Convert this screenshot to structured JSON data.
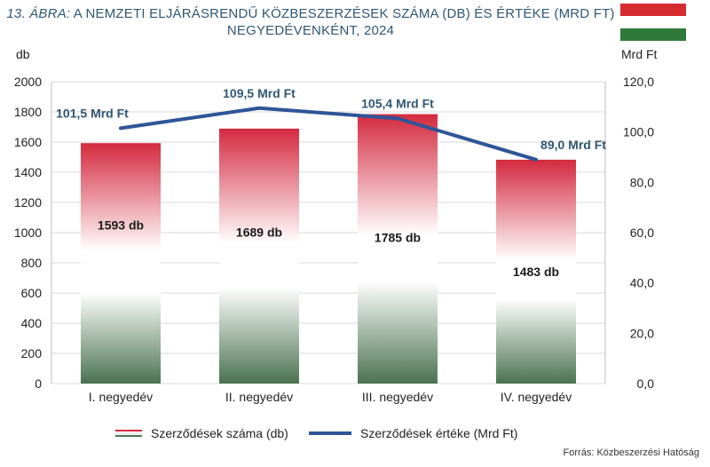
{
  "title": {
    "prefix": "13. ÁBRA:",
    "line1": "A NEMZETI ELJÁRÁSRENDŰ KÖZBESZERZÉSEK SZÁMA (DB) ÉS ÉRTÉKE (MRD FT)",
    "line2": "NEGYEDÉVENKÉNT, 2024"
  },
  "colors": {
    "title": "#2f5773",
    "line": "#2e5597",
    "bar_top": "#d42a3f",
    "bar_bottom": "#4a7350",
    "flag_red": "#d62b2f",
    "flag_white": "#ffffff",
    "flag_green": "#2f7a3a"
  },
  "legend": {
    "bars_label": "Szerződések száma (db)",
    "line_label": "Szerződések értéke (Mrd Ft)"
  },
  "source": "Forrás: Közbeszerzési Hatóság",
  "chart_data": {
    "type": "bar",
    "title": "A nemzeti eljárásrendű közbeszerzések száma (db) és értéke (Mrd Ft) negyedévenként, 2024",
    "categories": [
      "I. negyedév",
      "II. negyedév",
      "III. negyedév",
      "IV. negyedév"
    ],
    "series": [
      {
        "name": "Szerződések száma (db)",
        "type": "bar",
        "axis": "left",
        "values": [
          1593,
          1689,
          1785,
          1483
        ],
        "labels": [
          "1593 db",
          "1689 db",
          "1785 db",
          "1483 db"
        ]
      },
      {
        "name": "Szerződések értéke (Mrd Ft)",
        "type": "line",
        "axis": "right",
        "values": [
          101.5,
          109.5,
          105.4,
          89.0
        ],
        "labels": [
          "101,5 Mrd Ft",
          "109,5 Mrd Ft",
          "105,4 Mrd Ft",
          "89,0 Mrd Ft"
        ]
      }
    ],
    "y_left": {
      "label": "db",
      "ylim": [
        0,
        2000
      ],
      "ticks": [
        "0",
        "200",
        "400",
        "600",
        "800",
        "1000",
        "1200",
        "1400",
        "1600",
        "1800",
        "2000"
      ]
    },
    "y_right": {
      "label": "Mrd Ft",
      "ylim": [
        0,
        120
      ],
      "ticks": [
        "0,0",
        "20,0",
        "40,0",
        "60,0",
        "80,0",
        "100,0",
        "120,0"
      ]
    },
    "grid": true,
    "legend_position": "bottom"
  }
}
